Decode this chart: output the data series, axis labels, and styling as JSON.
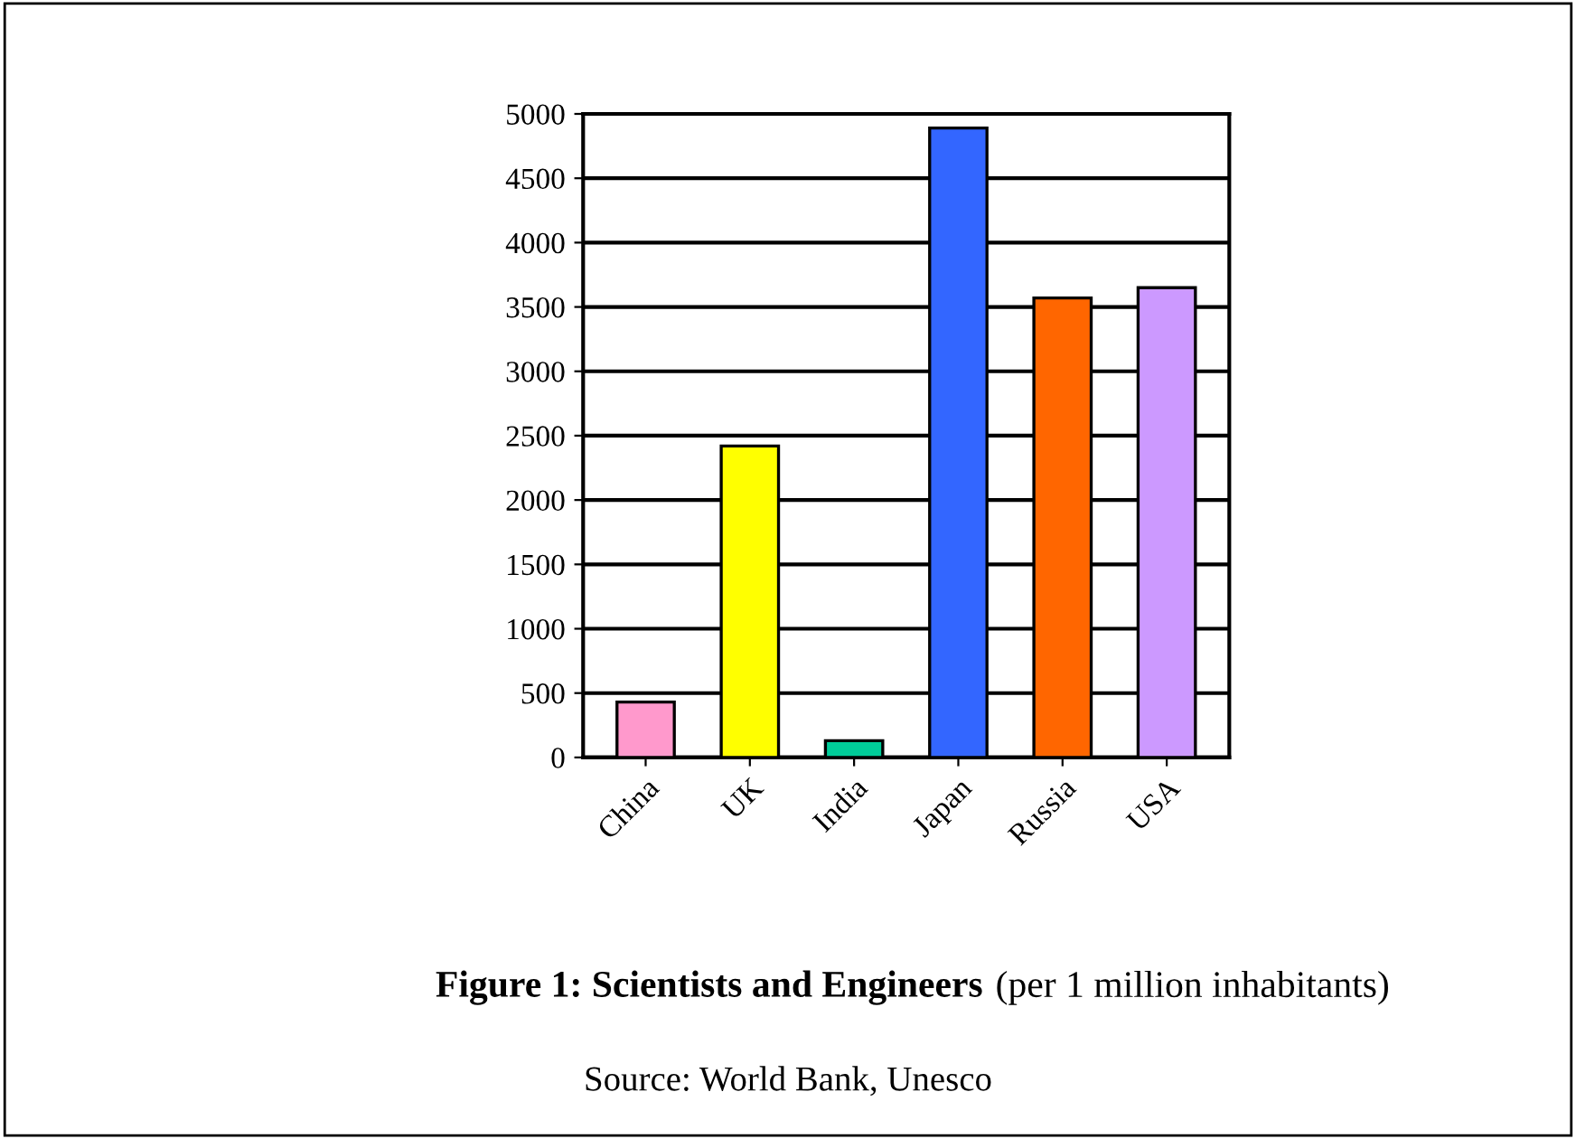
{
  "chart_data": {
    "type": "bar",
    "title": "Figure 1: Scientists and Engineers",
    "subtitle": "(per 1 million inhabitants)",
    "annotations": [
      "Source: World Bank, Unesco"
    ],
    "categories": [
      "China",
      "UK",
      "India",
      "Japan",
      "Russia",
      "USA"
    ],
    "values": [
      430,
      2420,
      130,
      4890,
      3570,
      3650
    ],
    "colors": [
      "#ff99cc",
      "#ffff00",
      "#00cc99",
      "#3366ff",
      "#ff6600",
      "#cc99ff"
    ],
    "ylim": [
      0,
      5000
    ],
    "yticks": [
      0,
      500,
      1000,
      1500,
      2000,
      2500,
      3000,
      3500,
      4000,
      4500,
      5000
    ],
    "grid": "y"
  }
}
